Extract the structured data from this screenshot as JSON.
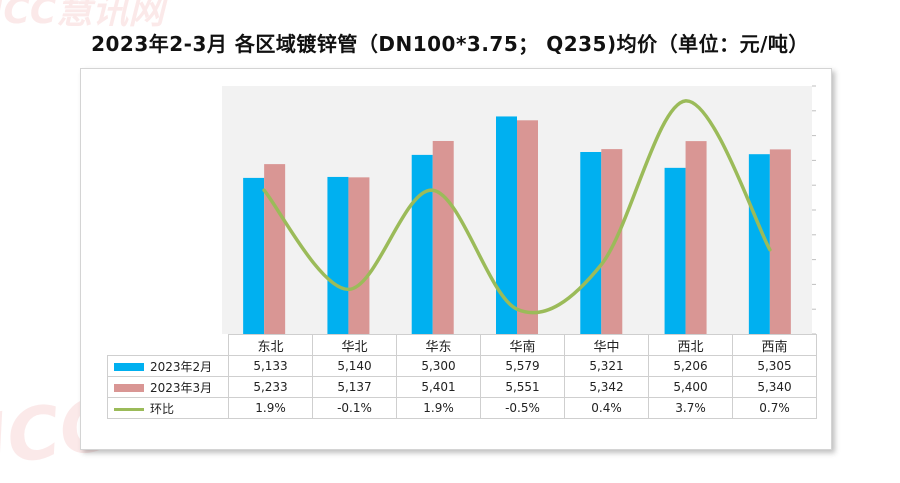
{
  "chart_data": {
    "type": "bar",
    "title": "2023年2-3月 各区域镀锌管（DN100*3.75； Q235)均价（单位：元/吨）",
    "categories": [
      "东北",
      "华北",
      "华东",
      "华南",
      "华中",
      "西北",
      "西南"
    ],
    "series": [
      {
        "name": "2023年2月",
        "type": "bar",
        "color": "#00b0f0",
        "values": [
          5133,
          5140,
          5300,
          5579,
          5321,
          5206,
          5305
        ],
        "labels": [
          "5,133",
          "5,140",
          "5,300",
          "5,579",
          "5,321",
          "5,206",
          "5,305"
        ]
      },
      {
        "name": "2023年3月",
        "type": "bar",
        "color": "#d99694",
        "values": [
          5233,
          5137,
          5401,
          5551,
          5342,
          5400,
          5340
        ],
        "labels": [
          "5,233",
          "5,137",
          "5,401",
          "5,551",
          "5,342",
          "5,400",
          "5,340"
        ]
      },
      {
        "name": "环比",
        "type": "line",
        "color": "#9bbb59",
        "values": [
          1.9,
          -0.1,
          1.9,
          -0.5,
          0.4,
          3.7,
          0.7
        ],
        "labels": [
          "1.9%",
          "-0.1%",
          "1.9%",
          "-0.5%",
          "0.4%",
          "3.7%",
          "0.7%"
        ]
      }
    ],
    "bar_ylim": [
      4000,
      5800
    ],
    "line_ylim": [
      -1,
      4
    ],
    "grid": false,
    "legend": "data-table",
    "data_table": true
  },
  "watermark": {
    "text_latin": "ICC",
    "text_cn": "慧讯网"
  }
}
